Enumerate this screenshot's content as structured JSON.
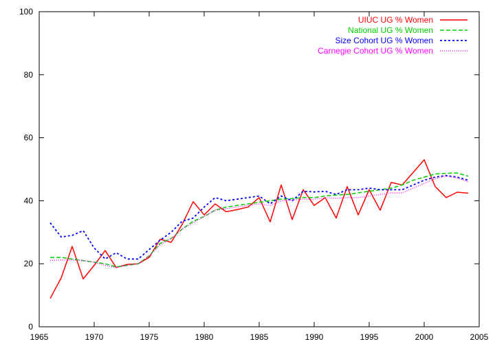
{
  "chart_data": {
    "type": "line",
    "title": "",
    "xlabel": "",
    "ylabel": "",
    "xlim": [
      1965,
      2005
    ],
    "ylim": [
      0,
      100
    ],
    "x_ticks": [
      1965,
      1970,
      1975,
      1980,
      1985,
      1990,
      1995,
      2000,
      2005
    ],
    "y_ticks": [
      0,
      20,
      40,
      60,
      80,
      100
    ],
    "grid": false,
    "legend_position": "top-right",
    "x": [
      1966,
      1967,
      1968,
      1969,
      1970,
      1971,
      1972,
      1973,
      1974,
      1975,
      1976,
      1977,
      1978,
      1979,
      1980,
      1981,
      1982,
      1983,
      1984,
      1985,
      1986,
      1987,
      1988,
      1989,
      1990,
      1991,
      1992,
      1993,
      1994,
      1995,
      1996,
      1997,
      1998,
      1999,
      2000,
      2001,
      2002,
      2003,
      2004
    ],
    "series": [
      {
        "name": "UIUC UG % Women",
        "color": "#ff0000",
        "dash": "solid",
        "values": [
          9.0,
          15.5,
          25.5,
          15.2,
          19.5,
          24.2,
          18.8,
          19.8,
          20.0,
          22.0,
          27.8,
          26.8,
          32.5,
          39.7,
          35.5,
          39.0,
          36.5,
          37.2,
          38.0,
          41.0,
          33.3,
          45.0,
          34.0,
          43.5,
          38.5,
          41.0,
          34.5,
          44.5,
          35.5,
          43.5,
          37.0,
          45.8,
          45.0,
          49.0,
          53.0,
          44.5,
          41.0,
          42.7,
          42.4
        ]
      },
      {
        "name": "National UG % Women",
        "color": "#00cc00",
        "dash": "dashed",
        "values": [
          22.0,
          22.0,
          21.5,
          21.0,
          20.5,
          20.0,
          19.0,
          19.5,
          20.0,
          22.5,
          26.5,
          28.0,
          31.0,
          33.5,
          35.0,
          37.0,
          38.0,
          38.5,
          39.0,
          39.5,
          40.0,
          40.5,
          40.7,
          41.0,
          41.0,
          41.5,
          41.8,
          42.0,
          42.5,
          43.0,
          43.5,
          44.0,
          45.0,
          46.5,
          47.5,
          48.5,
          48.7,
          48.8,
          47.8
        ]
      },
      {
        "name": "Size Cohort UG % Women",
        "color": "#0000ff",
        "dash": "dotted",
        "values": [
          33.0,
          28.5,
          29.0,
          30.5,
          25.0,
          21.5,
          23.5,
          21.5,
          21.5,
          24.5,
          27.5,
          30.0,
          33.5,
          34.5,
          38.0,
          41.0,
          40.0,
          40.5,
          41.0,
          41.5,
          39.0,
          41.5,
          40.0,
          43.0,
          42.8,
          43.0,
          42.0,
          43.5,
          43.5,
          44.0,
          43.5,
          43.5,
          43.5,
          45.0,
          46.5,
          47.5,
          48.0,
          47.5,
          46.5
        ]
      },
      {
        "name": "Carnegie Cohort UG % Women",
        "color": "#ff00ff",
        "dash": "fine-dotted",
        "values": [
          21.0,
          21.2,
          21.2,
          21.0,
          20.5,
          19.5,
          18.8,
          19.5,
          20.0,
          22.5,
          26.0,
          28.0,
          31.0,
          33.0,
          35.0,
          37.0,
          37.5,
          38.0,
          38.5,
          39.0,
          38.5,
          40.0,
          40.2,
          40.5,
          40.5,
          41.0,
          40.8,
          41.0,
          41.0,
          41.5,
          42.0,
          42.5,
          42.5,
          44.0,
          45.5,
          47.0,
          47.8,
          47.2,
          46.0
        ]
      }
    ]
  }
}
